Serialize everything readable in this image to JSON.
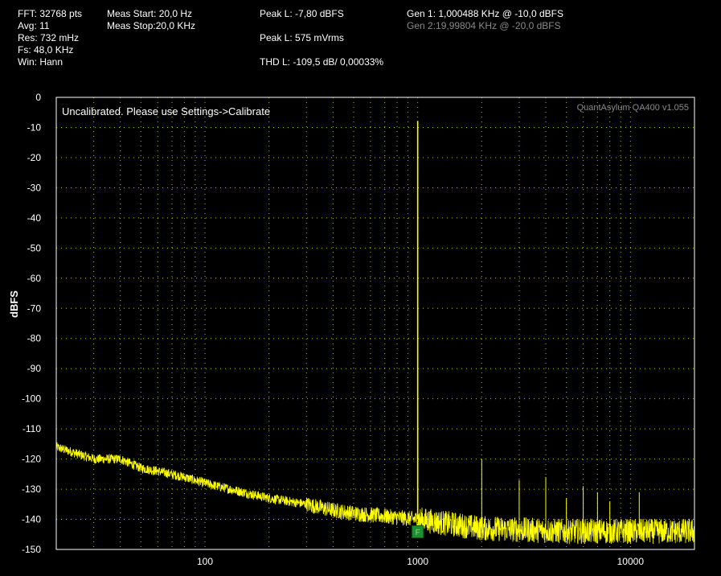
{
  "status": {
    "fft": "FFT: 32768 pts",
    "avg": "Avg: 11",
    "res": "Res: 732 mHz",
    "fs": "Fs: 48,0 KHz",
    "win": "Win: Hann",
    "meas_start": "Meas Start: 20,0 Hz",
    "meas_stop": "Meas Stop:20,0 KHz",
    "peak_l_dbfs": "Peak L: -7,80 dBFS",
    "peak_l_mvrms": "Peak L: 575 mVrms",
    "thd_l": "THD L: -109,5 dB/ 0,00033%",
    "gen1": "Gen 1: 1,000488 KHz @ -10,0  dBFS",
    "gen2": "Gen 2:19,99804 KHz @ -20,0  dBFS"
  },
  "plot": {
    "calibration_note": "Uncalibrated. Please use Settings->Calibrate",
    "watermark": "QuantAsylum QA400 v1.055",
    "fundamental_marker": "F"
  },
  "colors": {
    "trace": "#ffff00",
    "grid": "#bdbd00",
    "marker": "#1e8f2e",
    "background": "#000000",
    "dim_text": "#8a8a8a"
  },
  "chart_data": {
    "type": "line",
    "xscale": "log",
    "xlim": [
      20,
      20000
    ],
    "ylim": [
      -150,
      0
    ],
    "xticks": [
      100,
      1000,
      10000
    ],
    "xtick_labels": [
      "100",
      "1000",
      "10000"
    ],
    "yticks": [
      0,
      -10,
      -20,
      -30,
      -40,
      -50,
      -60,
      -70,
      -80,
      -90,
      -100,
      -110,
      -120,
      -130,
      -140,
      -150
    ],
    "ylabel": "dBFS",
    "xlabel": "",
    "grid": true,
    "series": [
      {
        "noise_floor": {
          "x": [
            20,
            30,
            40,
            50,
            60,
            80,
            100,
            150,
            200,
            300,
            400,
            500,
            700,
            1000,
            2000,
            5000,
            10000,
            20000
          ],
          "y": [
            -116,
            -120,
            -120,
            -123,
            -124,
            -126,
            -128,
            -131,
            -133,
            -135,
            -137,
            -138,
            -139,
            -140,
            -143,
            -144,
            -144,
            -144
          ]
        },
        "peaks": [
          {
            "x": 1000,
            "y": -7.8
          },
          {
            "x": 2000,
            "y": -120
          },
          {
            "x": 3000,
            "y": -127
          },
          {
            "x": 4000,
            "y": -126
          },
          {
            "x": 5000,
            "y": -133
          },
          {
            "x": 6000,
            "y": -129
          },
          {
            "x": 7000,
            "y": -131
          },
          {
            "x": 8000,
            "y": -134
          },
          {
            "x": 11000,
            "y": -131
          }
        ]
      }
    ]
  }
}
